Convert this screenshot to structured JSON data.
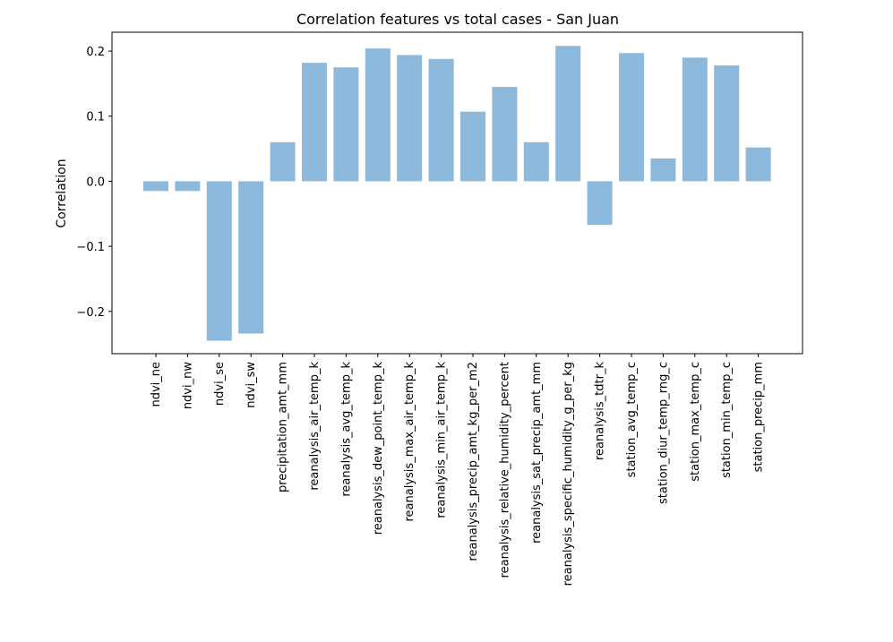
{
  "chart_data": {
    "type": "bar",
    "title": "Correlation features vs total cases - San Juan",
    "xlabel": "",
    "ylabel": "Correlation",
    "ylim": [
      -0.265,
      0.229
    ],
    "yticks": [
      -0.2,
      -0.1,
      0.0,
      0.1,
      0.2
    ],
    "ytick_labels": [
      "−0.2",
      "−0.1",
      "0.0",
      "0.1",
      "0.2"
    ],
    "grid": false,
    "bar_color": "#8cb9db",
    "categories": [
      "ndvi_ne",
      "ndvi_nw",
      "ndvi_se",
      "ndvi_sw",
      "precipitation_amt_mm",
      "reanalysis_air_temp_k",
      "reanalysis_avg_temp_k",
      "reanalysis_dew_point_temp_k",
      "reanalysis_max_air_temp_k",
      "reanalysis_min_air_temp_k",
      "reanalysis_precip_amt_kg_per_m2",
      "reanalysis_relative_humidity_percent",
      "reanalysis_sat_precip_amt_mm",
      "reanalysis_specific_humidity_g_per_kg",
      "reanalysis_tdtr_k",
      "station_avg_temp_c",
      "station_diur_temp_rng_c",
      "station_max_temp_c",
      "station_min_temp_c",
      "station_precip_mm"
    ],
    "values": [
      -0.015,
      -0.015,
      -0.245,
      -0.234,
      0.06,
      0.182,
      0.175,
      0.204,
      0.194,
      0.188,
      0.107,
      0.145,
      0.06,
      0.208,
      -0.067,
      0.197,
      0.035,
      0.19,
      0.178,
      0.052
    ]
  }
}
